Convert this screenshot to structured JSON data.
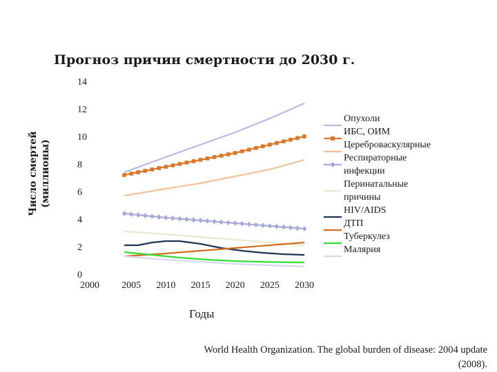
{
  "chart_data": {
    "type": "line",
    "title": "Прогноз причин смертности до 2030 г.",
    "xlabel": "Годы",
    "ylabel": "Число смертей (миллионы)",
    "ylabel_line1": "Число смертей",
    "ylabel_line2": "(миллионы)",
    "y_ticks": [
      "14",
      "12",
      "10",
      "8",
      "6",
      "4",
      "2",
      "0"
    ],
    "x_ticks": [
      "2000",
      "2005",
      "2010",
      "2015",
      "2020",
      "2025",
      "2030"
    ],
    "ylim": [
      0,
      14
    ],
    "xlim": [
      2000,
      2030
    ],
    "grid": false,
    "legend_position": "right",
    "legend_labels": [
      "Опухоли",
      "ИБС, ОИМ",
      "Цереброваскулярные",
      "Респираторные",
      "инфекции",
      "Перинатальные",
      "причины",
      "HIV/AIDS",
      "ДТП",
      "Туберкулез",
      "Малярия"
    ],
    "series": [
      {
        "name": "Опухоли",
        "color": "#b7b9e0",
        "marker": "none",
        "x": [
          2004,
          2010,
          2015,
          2020,
          2025,
          2030
        ],
        "values": [
          7.4,
          8.5,
          9.4,
          10.3,
          11.3,
          12.4
        ]
      },
      {
        "name": "ИБС, ОИМ",
        "color": "#d9782d",
        "marker": "square",
        "x": [
          2004,
          2010,
          2015,
          2020,
          2025,
          2030
        ],
        "values": [
          7.2,
          7.8,
          8.3,
          8.8,
          9.4,
          10.0
        ]
      },
      {
        "name": "Цереброваскулярные",
        "color": "#f2c29c",
        "marker": "none",
        "x": [
          2004,
          2010,
          2015,
          2020,
          2025,
          2030
        ],
        "values": [
          5.7,
          6.2,
          6.6,
          7.1,
          7.6,
          8.3
        ]
      },
      {
        "name": "Респираторные инфекции",
        "color": "#a7a9d9",
        "marker": "diamond",
        "x": [
          2004,
          2010,
          2015,
          2020,
          2025,
          2030
        ],
        "values": [
          4.4,
          4.1,
          3.9,
          3.7,
          3.5,
          3.3
        ]
      },
      {
        "name": "Перинатальные причины",
        "color": "#e8e8cf",
        "marker": "none",
        "x": [
          2004,
          2010,
          2015,
          2020,
          2025,
          2030
        ],
        "values": [
          3.1,
          2.9,
          2.7,
          2.5,
          2.3,
          2.1
        ]
      },
      {
        "name": "HIV/AIDS",
        "color": "#1f3554",
        "marker": "none",
        "x": [
          2004,
          2006,
          2008,
          2010,
          2012,
          2015,
          2018,
          2021,
          2024,
          2027,
          2030
        ],
        "values": [
          2.1,
          2.1,
          2.3,
          2.4,
          2.4,
          2.2,
          1.9,
          1.7,
          1.55,
          1.45,
          1.4
        ]
      },
      {
        "name": "ДТП",
        "color": "#d46a1e",
        "marker": "none",
        "x": [
          2004,
          2010,
          2015,
          2020,
          2025,
          2030
        ],
        "values": [
          1.3,
          1.5,
          1.7,
          1.9,
          2.1,
          2.3
        ]
      },
      {
        "name": "Туберкулез",
        "color": "#33dd33",
        "marker": "none",
        "x": [
          2004,
          2008,
          2012,
          2016,
          2020,
          2025,
          2030
        ],
        "values": [
          1.6,
          1.4,
          1.2,
          1.05,
          0.95,
          0.88,
          0.85
        ]
      },
      {
        "name": "Малярия",
        "color": "#d7d8ef",
        "marker": "none",
        "x": [
          2004,
          2010,
          2015,
          2020,
          2025,
          2030
        ],
        "values": [
          1.3,
          1.05,
          0.9,
          0.75,
          0.65,
          0.55
        ]
      }
    ],
    "legend_swatches": [
      {
        "color": "#b7b9e0",
        "marker": "none"
      },
      {
        "color": "#d9782d",
        "marker": "square"
      },
      {
        "color": "#f2c29c",
        "marker": "none"
      },
      {
        "color": "#a7a9d9",
        "marker": "diamond"
      },
      {
        "color": "#e8e8cf",
        "marker": "none"
      },
      {
        "color": "#1f3554",
        "marker": "none"
      },
      {
        "color": "#d46a1e",
        "marker": "none"
      },
      {
        "color": "#33dd33",
        "marker": "none"
      },
      {
        "color": "#d7d8ef",
        "marker": "none"
      }
    ]
  },
  "source": {
    "line1": "World Health Organization. The global burden of disease: 2004 update",
    "line2": "(2008)."
  }
}
